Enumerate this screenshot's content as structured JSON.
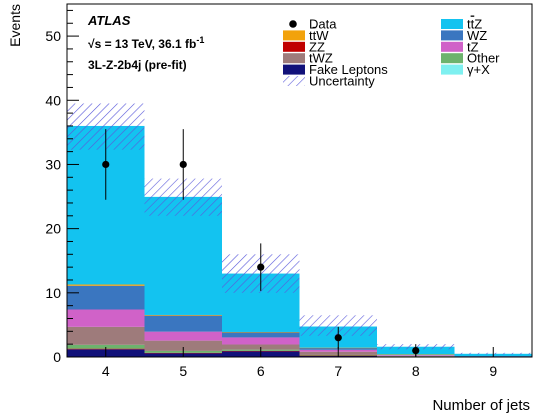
{
  "chart_data": {
    "type": "bar",
    "stacked": true,
    "xlabel": "Number of jets",
    "ylabel": "Events",
    "categories": [
      "4",
      "5",
      "6",
      "7",
      "8",
      "9"
    ],
    "ylim": [
      0,
      55
    ],
    "y_ticks": [
      "0",
      "10",
      "20",
      "30",
      "40",
      "50"
    ],
    "experiment": "ATLAS",
    "energy_label": "√s = 13 TeV, 36.1 fb",
    "energy_superscript": "-1",
    "region_label": "3L-Z-2b4j (pre-fit)",
    "series": [
      {
        "name": "Fake Leptons",
        "color": "#11117a",
        "values": [
          1.2,
          0.6,
          0.9,
          0.2,
          0.05,
          0.0
        ]
      },
      {
        "name": "ZZ",
        "color": "#c00000",
        "values": [
          0.1,
          0.05,
          0.05,
          0.02,
          0.01,
          0.0
        ]
      },
      {
        "name": "Other",
        "color": "#6db36d",
        "values": [
          0.6,
          0.3,
          0.2,
          0.1,
          0.03,
          0.0
        ]
      },
      {
        "name": "tWZ",
        "color": "#9e7b7b",
        "values": [
          2.8,
          1.6,
          0.8,
          0.5,
          0.1,
          0.05
        ]
      },
      {
        "name": "tZ",
        "color": "#d062c8",
        "values": [
          2.7,
          1.4,
          1.1,
          0.3,
          0.1,
          0.05
        ]
      },
      {
        "name": "WZ",
        "color": "#3a76c0",
        "values": [
          3.7,
          2.5,
          0.8,
          0.3,
          0.1,
          0.05
        ]
      },
      {
        "name": "ttW",
        "color": "#f2a20c",
        "values": [
          0.2,
          0.1,
          0.05,
          0.03,
          0.01,
          0.0
        ]
      },
      {
        "name": "γ+X",
        "color": "#7ef0f0",
        "values": [
          0.0,
          0.0,
          0.0,
          0.0,
          0.0,
          0.0
        ]
      },
      {
        "name": "ttZ",
        "color": "#13c3f0",
        "values": [
          24.7,
          18.4,
          9.1,
          3.3,
          1.2,
          0.35
        ]
      }
    ],
    "data": {
      "name": "Data",
      "values": [
        30,
        30,
        14,
        3,
        1,
        0
      ],
      "errors": [
        5.5,
        5.5,
        3.7,
        1.7,
        1.0,
        0
      ]
    },
    "uncertainty": {
      "name": "Uncertainty",
      "up": [
        39.5,
        27.8,
        16.0,
        6.5,
        2.0,
        0.65
      ],
      "down": [
        32.3,
        22.0,
        10.0,
        3.3,
        1.2,
        0.4
      ]
    },
    "legend": {
      "col1": [
        "Data",
        "ttW",
        "ZZ",
        "tWZ",
        "Fake Leptons",
        "Uncertainty"
      ],
      "col2": [
        "ttZ",
        "WZ",
        "tZ",
        "Other",
        "γ+X"
      ]
    },
    "grid": false
  }
}
